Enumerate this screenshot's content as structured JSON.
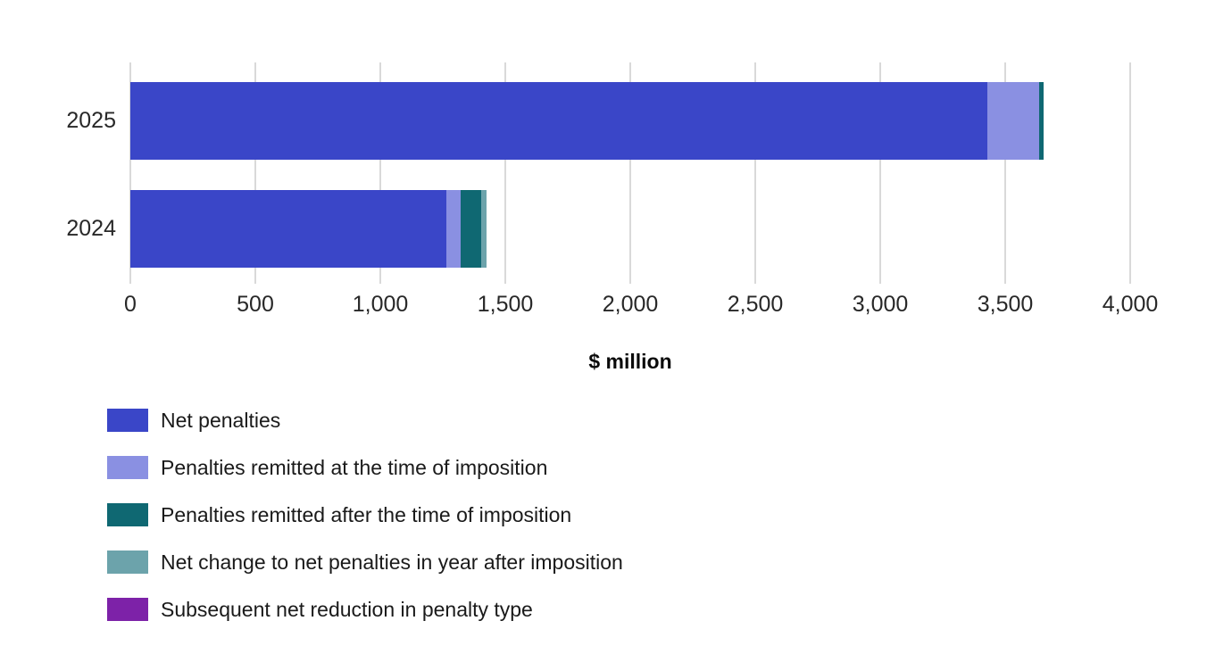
{
  "chart_data": {
    "type": "bar",
    "orientation": "horizontal",
    "stacked": true,
    "categories": [
      "2025",
      "2024"
    ],
    "series": [
      {
        "name": "Net penalties",
        "color": "#3a46c8",
        "values": [
          3430,
          1265
        ]
      },
      {
        "name": "Penalties remitted at the time of imposition",
        "color": "#8a90e2",
        "values": [
          205,
          55
        ]
      },
      {
        "name": "Penalties remitted after the time of imposition",
        "color": "#0f6872",
        "values": [
          20,
          85
        ]
      },
      {
        "name": "Net change to net penalties in year after imposition",
        "color": "#6ca3ab",
        "values": [
          0,
          20
        ]
      },
      {
        "name": "Subsequent net reduction in penalty type",
        "color": "#7d22a8",
        "values": [
          0,
          0
        ]
      }
    ],
    "xlabel": "$ million",
    "xlim": [
      0,
      4000
    ],
    "xticks": [
      0,
      500,
      1000,
      1500,
      2000,
      2500,
      3000,
      3500,
      4000
    ],
    "tick_labels": [
      "0",
      "500",
      "1,000",
      "1,500",
      "2,000",
      "2,500",
      "3,000",
      "3,500",
      "4,000"
    ],
    "grid": true,
    "legend_position": "bottom-left",
    "colors": {
      "background": "#ffffff",
      "gridline": "#d9d9d9",
      "axis_text": "#282828"
    }
  }
}
